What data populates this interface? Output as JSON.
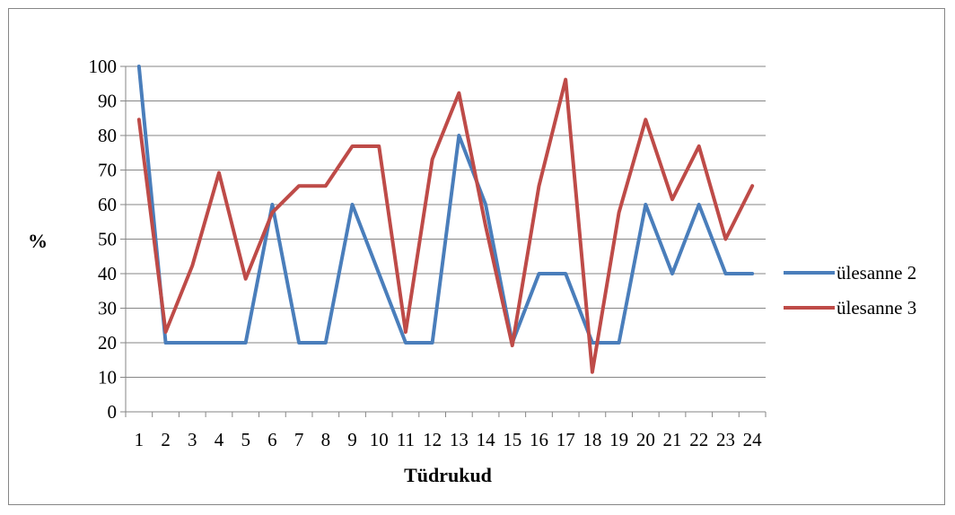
{
  "chart_data": {
    "type": "line",
    "categories": [
      "1",
      "2",
      "3",
      "4",
      "5",
      "6",
      "7",
      "8",
      "9",
      "10",
      "11",
      "12",
      "13",
      "14",
      "15",
      "16",
      "17",
      "18",
      "19",
      "20",
      "21",
      "22",
      "23",
      "24"
    ],
    "series": [
      {
        "name": "ülesanne 2",
        "color": "#4a7ebb",
        "values": [
          100,
          20,
          20,
          20,
          20,
          60,
          20,
          20,
          60,
          40,
          20,
          20,
          80,
          60,
          20,
          40,
          40,
          20,
          20,
          60,
          40,
          60,
          40,
          40
        ]
      },
      {
        "name": "ülesanne 3",
        "color": "#be4b48",
        "values": [
          84.6,
          23.1,
          42.3,
          69.2,
          38.5,
          57.7,
          65.4,
          65.4,
          76.9,
          76.9,
          23.1,
          73.1,
          92.3,
          53.8,
          19.2,
          65.4,
          96.2,
          11.5,
          57.7,
          84.6,
          61.5,
          76.9,
          50,
          65.4
        ]
      }
    ],
    "xlabel": "Tüdrukud",
    "ylabel": "%",
    "ylim": [
      0,
      100
    ],
    "yticks": [
      0,
      10,
      20,
      30,
      40,
      50,
      60,
      70,
      80,
      90,
      100
    ],
    "grid": true,
    "legend": "right"
  }
}
